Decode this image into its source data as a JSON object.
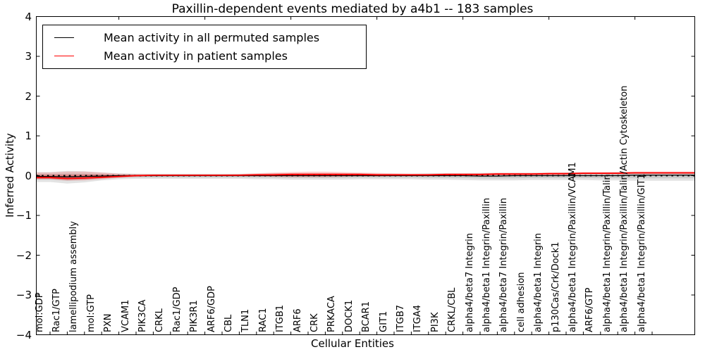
{
  "title": "Paxillin-dependent events mediated by a4b1 -- 183 samples",
  "legend": {
    "items": [
      {
        "label": "Mean activity in all permuted samples",
        "color": "#000000"
      },
      {
        "label": "Mean activity in patient samples",
        "color": "#ff0000"
      }
    ]
  },
  "chart_data": {
    "type": "line",
    "title": "Paxillin-dependent events mediated by a4b1 -- 183 samples",
    "xlabel": "Cellular Entities",
    "ylabel": "Inferred Activity",
    "ylim": [
      -4,
      4
    ],
    "yticks": [
      4,
      3,
      2,
      1,
      0,
      -1,
      -2,
      -3,
      -4
    ],
    "ytick_labels": [
      "4",
      "3",
      "2",
      "1",
      "0",
      "−1",
      "−2",
      "−3",
      "−4"
    ],
    "grid": false,
    "legend_position": "upper left",
    "zero_reference_line": {
      "y": 0,
      "style": "dotted",
      "color": "#000000"
    },
    "categories": [
      "mol:GDP",
      "Rac1/GTP",
      "lamellipodium assembly",
      "mol:GTP",
      "PXN",
      "VCAM1",
      "PIK3CA",
      "CRKL",
      "Rac1/GDP",
      "PIK3R1",
      "ARF6/GDP",
      "CBL",
      "TLN1",
      "RAC1",
      "ITGB1",
      "ARF6",
      "CRK",
      "PRKACA",
      "DOCK1",
      "BCAR1",
      "GIT1",
      "ITGB7",
      "ITGA4",
      "PI3K",
      "CRKL/CBL",
      "alpha4/beta7 Integrin",
      "alpha4/beta1 Integrin/Paxillin",
      "alpha4/beta7 Integrin/Paxillin",
      "cell adhesion",
      "alpha4/beta1 Integrin",
      "p130Cas/Crk/Dock1",
      "alpha4/beta1 Integrin/Paxillin/VCAM1",
      "ARF6/GTP",
      "alpha4/beta1 Integrin/Paxillin/Talin",
      "alpha4/beta1 Integrin/Paxillin/Talin/Actin Cytoskeleton",
      "alpha4/beta1 Integrin/Paxillin/GIT1"
    ],
    "series": [
      {
        "name": "Mean activity in all permuted samples",
        "color": "#000000",
        "band_color": "rgba(0,0,0,0.11)",
        "values": [
          -0.02,
          -0.03,
          -0.02,
          -0.01,
          0,
          0,
          0,
          0,
          0,
          0,
          0,
          0,
          0,
          0,
          0,
          0,
          0,
          0,
          0,
          0,
          0,
          0,
          0,
          0,
          0,
          -0.01,
          -0.01,
          0,
          0,
          0,
          0,
          0,
          0,
          0,
          0.01,
          0.01
        ],
        "band_upper": [
          0.09,
          0.12,
          0.11,
          0.08,
          0.06,
          0.05,
          0.05,
          0.05,
          0.05,
          0.05,
          0.05,
          0.05,
          0.05,
          0.06,
          0.06,
          0.06,
          0.06,
          0.06,
          0.06,
          0.05,
          0.05,
          0.05,
          0.06,
          0.06,
          0.06,
          0.07,
          0.07,
          0.07,
          0.07,
          0.07,
          0.08,
          0.08,
          0.08,
          0.09,
          0.09,
          0.09
        ],
        "band_lower": [
          -0.16,
          -0.2,
          -0.17,
          -0.12,
          -0.09,
          -0.08,
          -0.08,
          -0.08,
          -0.08,
          -0.08,
          -0.08,
          -0.08,
          -0.09,
          -0.09,
          -0.1,
          -0.1,
          -0.1,
          -0.1,
          -0.09,
          -0.09,
          -0.09,
          -0.09,
          -0.1,
          -0.1,
          -0.11,
          -0.12,
          -0.12,
          -0.12,
          -0.11,
          -0.11,
          -0.11,
          -0.11,
          -0.12,
          -0.12,
          -0.13,
          -0.13
        ]
      },
      {
        "name": "Mean activity in patient samples",
        "color": "#ff0000",
        "band_color": "rgba(255,0,0,0.16)",
        "values": [
          -0.05,
          -0.07,
          -0.06,
          -0.04,
          -0.02,
          0,
          0.01,
          0.01,
          0.01,
          0.01,
          0.01,
          0.01,
          0.02,
          0.02,
          0.03,
          0.03,
          0.03,
          0.03,
          0.03,
          0.02,
          0.02,
          0.02,
          0.02,
          0.03,
          0.03,
          0.03,
          0.04,
          0.04,
          0.04,
          0.05,
          0.05,
          0.06,
          0.06,
          0.06,
          0.07,
          0.07
        ],
        "band_upper": [
          0.08,
          0.1,
          0.1,
          0.08,
          0.05,
          0.04,
          0.03,
          0.03,
          0.03,
          0.03,
          0.03,
          0.04,
          0.06,
          0.08,
          0.09,
          0.1,
          0.1,
          0.09,
          0.08,
          0.07,
          0.06,
          0.05,
          0.05,
          0.06,
          0.06,
          0.06,
          0.07,
          0.07,
          0.07,
          0.08,
          0.08,
          0.09,
          0.09,
          0.09,
          0.1,
          0.1
        ],
        "band_lower": [
          -0.09,
          -0.13,
          -0.12,
          -0.09,
          -0.06,
          -0.03,
          -0.02,
          -0.01,
          -0.01,
          -0.01,
          -0.01,
          -0.01,
          -0.02,
          -0.03,
          -0.04,
          -0.04,
          -0.04,
          -0.03,
          -0.02,
          -0.02,
          -0.01,
          -0.01,
          -0.01,
          0,
          0,
          0,
          0.01,
          0.01,
          0.01,
          0.02,
          0.02,
          0.03,
          0.03,
          0.03,
          0.04,
          0.04
        ]
      }
    ]
  }
}
